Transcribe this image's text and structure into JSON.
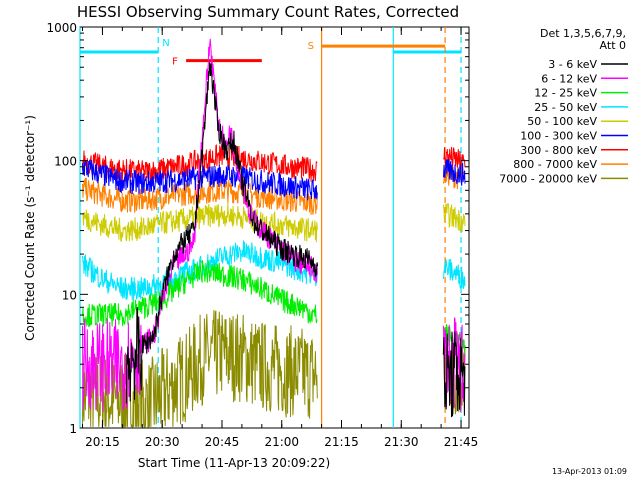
{
  "chart_data": {
    "type": "line",
    "title": "HESSI Observing Summary Count Rates, Corrected",
    "xlabel": "Start Time (11-Apr-13 20:09:22)",
    "ylabel": "Corrected Count Rate (s⁻¹ detector⁻¹)",
    "xscale": "time (UT)",
    "yscale": "log",
    "xlim": [
      "20:09:22",
      "21:47:00"
    ],
    "ylim": [
      1,
      1000
    ],
    "x_ticks": [
      "20:15",
      "20:30",
      "20:45",
      "21:00",
      "21:15",
      "21:30",
      "21:45"
    ],
    "y_ticks": [
      "1",
      "10",
      "100",
      "1000"
    ],
    "legend_title": [
      "Det 1,3,5,6,7,9,",
      "Att 0"
    ],
    "legend_position": "right",
    "series": [
      {
        "name": "3 - 6 keV",
        "color": "#000000",
        "points": [
          [
            "20:21",
            3.0
          ],
          [
            "20:28",
            5
          ],
          [
            "20:30",
            10
          ],
          [
            "20:33",
            20
          ],
          [
            "20:36",
            26
          ],
          [
            "20:38",
            30
          ],
          [
            "20:40",
            110
          ],
          [
            "20:42",
            550
          ],
          [
            "20:44",
            180
          ],
          [
            "20:46",
            120
          ],
          [
            "20:48",
            140
          ],
          [
            "20:50",
            70
          ],
          [
            "20:53",
            35
          ],
          [
            "20:56",
            28
          ],
          [
            "21:00",
            22
          ],
          [
            "21:03",
            20
          ],
          [
            "21:07",
            18
          ],
          [
            "21:41",
            2.4
          ],
          [
            "21:46",
            2.6
          ]
        ]
      },
      {
        "name": "6 - 12 keV",
        "color": "#ff00ff",
        "points": [
          [
            "20:10",
            3.0
          ],
          [
            "20:20",
            2.9
          ],
          [
            "20:28",
            5
          ],
          [
            "20:30",
            9
          ],
          [
            "20:33",
            17
          ],
          [
            "20:36",
            20
          ],
          [
            "20:38",
            25
          ],
          [
            "20:40",
            150
          ],
          [
            "20:42",
            800
          ],
          [
            "20:44",
            200
          ],
          [
            "20:46",
            120
          ],
          [
            "20:47",
            170
          ],
          [
            "20:49",
            90
          ],
          [
            "20:52",
            40
          ],
          [
            "20:55",
            30
          ],
          [
            "21:00",
            22
          ],
          [
            "21:03",
            18
          ],
          [
            "21:07",
            16
          ],
          [
            "21:41",
            3.2
          ],
          [
            "21:46",
            2.8
          ]
        ]
      },
      {
        "name": "12 - 25 keV",
        "color": "#00ee00",
        "points": [
          [
            "20:10",
            7
          ],
          [
            "20:20",
            7
          ],
          [
            "20:25",
            8
          ],
          [
            "20:30",
            9
          ],
          [
            "20:35",
            12
          ],
          [
            "20:40",
            15
          ],
          [
            "20:45",
            14
          ],
          [
            "20:50",
            13
          ],
          [
            "20:55",
            11
          ],
          [
            "21:00",
            9
          ],
          [
            "21:05",
            8
          ],
          [
            "21:08",
            7
          ],
          [
            "21:41",
            5
          ],
          [
            "21:46",
            4
          ]
        ]
      },
      {
        "name": "25 - 50 keV",
        "color": "#00e5ff",
        "points": [
          [
            "20:10",
            17
          ],
          [
            "20:15",
            13
          ],
          [
            "20:20",
            11
          ],
          [
            "20:25",
            11
          ],
          [
            "20:30",
            12
          ],
          [
            "20:35",
            14
          ],
          [
            "20:40",
            16
          ],
          [
            "20:45",
            19
          ],
          [
            "20:50",
            21
          ],
          [
            "20:55",
            19
          ],
          [
            "21:00",
            17
          ],
          [
            "21:05",
            15
          ],
          [
            "21:08",
            14
          ],
          [
            "21:41",
            16
          ],
          [
            "21:46",
            13
          ]
        ]
      },
      {
        "name": "50 - 100 keV",
        "color": "#cccc00",
        "points": [
          [
            "20:10",
            38
          ],
          [
            "20:15",
            33
          ],
          [
            "20:20",
            30
          ],
          [
            "20:25",
            31
          ],
          [
            "20:30",
            34
          ],
          [
            "20:35",
            36
          ],
          [
            "20:40",
            38
          ],
          [
            "20:45",
            40
          ],
          [
            "20:50",
            38
          ],
          [
            "20:55",
            35
          ],
          [
            "21:00",
            33
          ],
          [
            "21:05",
            31
          ],
          [
            "21:08",
            30
          ],
          [
            "21:41",
            40
          ],
          [
            "21:46",
            35
          ]
        ]
      },
      {
        "name": "100 - 300 keV",
        "color": "#0000ff",
        "points": [
          [
            "20:10",
            90
          ],
          [
            "20:15",
            78
          ],
          [
            "20:20",
            70
          ],
          [
            "20:25",
            68
          ],
          [
            "20:30",
            70
          ],
          [
            "20:35",
            72
          ],
          [
            "20:40",
            75
          ],
          [
            "20:45",
            78
          ],
          [
            "20:50",
            75
          ],
          [
            "20:55",
            70
          ],
          [
            "21:00",
            66
          ],
          [
            "21:05",
            62
          ],
          [
            "21:08",
            60
          ],
          [
            "21:41",
            85
          ],
          [
            "21:46",
            78
          ]
        ]
      },
      {
        "name": "300 - 800 keV",
        "color": "#ff0000",
        "points": [
          [
            "20:10",
            100
          ],
          [
            "20:15",
            90
          ],
          [
            "20:20",
            85
          ],
          [
            "20:25",
            82
          ],
          [
            "20:30",
            86
          ],
          [
            "20:35",
            92
          ],
          [
            "20:40",
            100
          ],
          [
            "20:45",
            110
          ],
          [
            "20:50",
            105
          ],
          [
            "20:55",
            98
          ],
          [
            "21:00",
            92
          ],
          [
            "21:05",
            88
          ],
          [
            "21:08",
            85
          ],
          [
            "21:41",
            110
          ],
          [
            "21:46",
            95
          ]
        ]
      },
      {
        "name": "800 - 7000 keV",
        "color": "#ff8000",
        "points": [
          [
            "20:10",
            62
          ],
          [
            "20:15",
            55
          ],
          [
            "20:20",
            50
          ],
          [
            "20:25",
            50
          ],
          [
            "20:30",
            53
          ],
          [
            "20:35",
            56
          ],
          [
            "20:40",
            58
          ],
          [
            "20:45",
            60
          ],
          [
            "20:50",
            58
          ],
          [
            "20:55",
            54
          ],
          [
            "21:00",
            51
          ],
          [
            "21:05",
            49
          ],
          [
            "21:08",
            48
          ],
          [
            "21:41",
            80
          ],
          [
            "21:46",
            72
          ]
        ]
      },
      {
        "name": "7000 - 20000 keV",
        "color": "#8b8b00",
        "points": [
          [
            "20:10",
            1.8
          ],
          [
            "20:20",
            1.6
          ],
          [
            "20:27",
            1.5
          ],
          [
            "20:32",
            2.0
          ],
          [
            "20:37",
            2.6
          ],
          [
            "20:40",
            3.3
          ],
          [
            "20:45",
            3.6
          ],
          [
            "20:50",
            3.4
          ],
          [
            "20:55",
            2.9
          ],
          [
            "21:00",
            2.7
          ],
          [
            "21:05",
            2.6
          ],
          [
            "21:08",
            2.5
          ],
          [
            "21:41",
            3.0
          ],
          [
            "21:46",
            2.3
          ]
        ]
      }
    ],
    "annotations": {
      "night_markers": {
        "label": "N",
        "color": "#00e5ff",
        "segments": [
          [
            "20:09:22",
            "20:29"
          ],
          [
            "21:28",
            "21:45"
          ]
        ],
        "dashed_at": [
          "20:29",
          "21:45"
        ],
        "solid_at": [
          "20:09:22",
          "21:28"
        ]
      },
      "flare_marker": {
        "label": "F",
        "color": "#ff0000",
        "start": "20:36",
        "end": "20:55"
      },
      "saa_markers": {
        "label": "S",
        "color": "#ff8000",
        "start": "21:10",
        "end": "21:41",
        "solid_at": [
          "21:10"
        ],
        "dashed_at": [
          "21:41"
        ]
      }
    }
  },
  "footer": {
    "timestamp": "13-Apr-2013 01:09"
  }
}
